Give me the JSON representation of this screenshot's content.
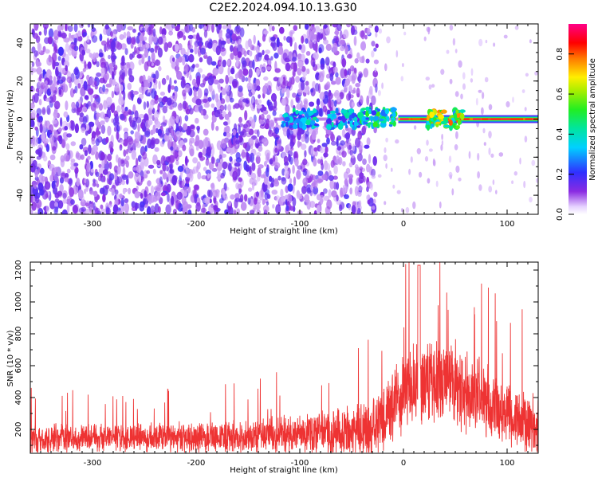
{
  "title": "C2E2.2024.094.10.13.G30",
  "chart_data": [
    {
      "type": "heatmap",
      "xlabel": "Height of straight line (km)",
      "ylabel": "Frequency (Hz)",
      "xlim": [
        -360,
        130
      ],
      "ylim": [
        -50,
        50
      ],
      "xticks": [
        -300,
        -200,
        -100,
        0,
        100
      ],
      "yticks": [
        -40,
        -20,
        0,
        20,
        40
      ],
      "colorbar": {
        "label": "Normalized spectral amplitude",
        "range": [
          0,
          0.95
        ],
        "ticks": [
          "0.0",
          "0.2",
          "0.4",
          "0.6",
          "0.8"
        ],
        "colormap": "rainbow (violet-blue-cyan-green-yellow-red-magenta)"
      },
      "features": {
        "noise_region_x": [
          -360,
          -35
        ],
        "signal_line_frequency_hz": 0,
        "signal_line_x": [
          -125,
          130
        ],
        "strong_signal_x": [
          -5,
          130
        ],
        "clusters": [
          {
            "x": -100,
            "y": 0,
            "amplitude": 0.45
          },
          {
            "x": -55,
            "y": 0,
            "amplitude": 0.45
          },
          {
            "x": -25,
            "y": 1,
            "amplitude": 0.55
          },
          {
            "x": 40,
            "y": 0,
            "amplitude": 0.8
          }
        ]
      },
      "grid": false
    },
    {
      "type": "line",
      "series": [
        {
          "color": "#ee3333"
        }
      ],
      "xlabel": "Height of straight line (km)",
      "ylabel": "SNR (10 * v/v)",
      "xlim": [
        -360,
        130
      ],
      "ylim": [
        50,
        1250
      ],
      "xticks": [
        -300,
        -200,
        -100,
        0,
        100
      ],
      "yticks": [
        200,
        400,
        600,
        800,
        1000,
        1200
      ],
      "envelope": {
        "x": [
          -360,
          -300,
          -250,
          -200,
          -150,
          -100,
          -60,
          -40,
          -25,
          -15,
          0,
          15,
          30,
          50,
          70,
          90,
          110,
          130
        ],
        "base": [
          140,
          150,
          150,
          150,
          155,
          175,
          185,
          200,
          220,
          320,
          430,
          500,
          520,
          480,
          420,
          330,
          260,
          220
        ],
        "spread": [
          110,
          105,
          110,
          115,
          120,
          140,
          170,
          200,
          230,
          260,
          300,
          330,
          330,
          320,
          300,
          270,
          240,
          220
        ],
        "spike_max": 1230
      },
      "grid": false
    }
  ]
}
